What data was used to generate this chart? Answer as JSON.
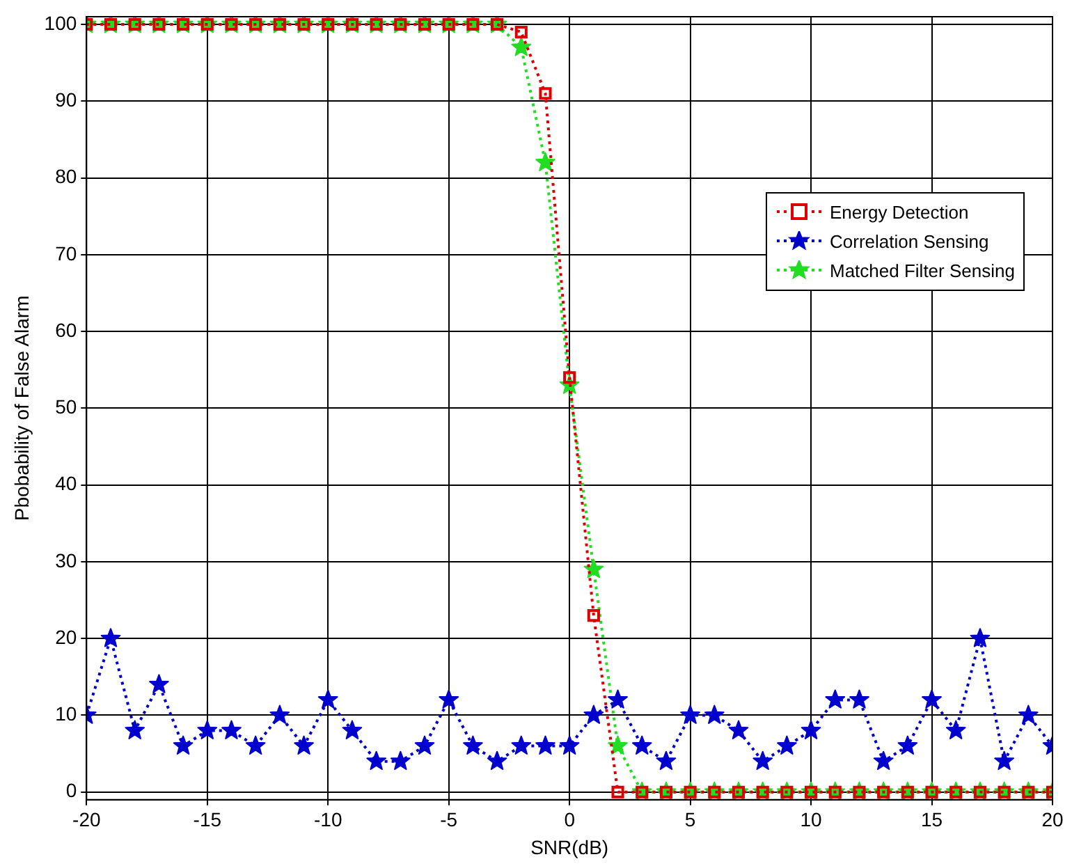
{
  "chart_data": {
    "type": "line",
    "xlabel": "SNR(dB)",
    "ylabel": "Pbobability of False Alarm",
    "x": [
      -20,
      -19,
      -18,
      -17,
      -16,
      -15,
      -14,
      -13,
      -12,
      -11,
      -10,
      -9,
      -8,
      -7,
      -6,
      -5,
      -4,
      -3,
      -2,
      -1,
      0,
      1,
      2,
      3,
      4,
      5,
      6,
      7,
      8,
      9,
      10,
      11,
      12,
      13,
      14,
      15,
      16,
      17,
      18,
      19,
      20
    ],
    "series": [
      {
        "name": "Energy Detection",
        "color": "#dd0000",
        "marker": "square",
        "values": [
          100,
          100,
          100,
          100,
          100,
          100,
          100,
          100,
          100,
          100,
          100,
          100,
          100,
          100,
          100,
          100,
          100,
          100,
          99,
          91,
          54,
          23,
          0,
          0,
          0,
          0,
          0,
          0,
          0,
          0,
          0,
          0,
          0,
          0,
          0,
          0,
          0,
          0,
          0,
          0,
          0
        ]
      },
      {
        "name": "Correlation Sensing",
        "color": "#0000cc",
        "marker": "star",
        "values": [
          10,
          20,
          8,
          14,
          6,
          8,
          8,
          6,
          10,
          6,
          12,
          8,
          4,
          4,
          6,
          12,
          6,
          4,
          6,
          6,
          6,
          10,
          12,
          6,
          4,
          10,
          10,
          8,
          4,
          6,
          8,
          12,
          12,
          4,
          6,
          12,
          8,
          20,
          4,
          10,
          6
        ]
      },
      {
        "name": "Matched Filter Sensing",
        "color": "#22dd22",
        "marker": "star",
        "values": [
          100,
          100,
          100,
          100,
          100,
          100,
          100,
          100,
          100,
          100,
          100,
          100,
          100,
          100,
          100,
          100,
          100,
          100,
          97,
          82,
          53,
          29,
          6,
          0,
          0,
          0,
          0,
          0,
          0,
          0,
          0,
          0,
          0,
          0,
          0,
          0,
          0,
          0,
          0,
          0,
          0
        ]
      }
    ],
    "xlim": [
      -20,
      20
    ],
    "xticks": [
      -20,
      -15,
      -10,
      -5,
      0,
      5,
      10,
      15,
      20
    ],
    "ylim": [
      -1,
      101
    ],
    "yticks": [
      0,
      10,
      20,
      30,
      40,
      50,
      60,
      70,
      80,
      90,
      100
    ],
    "grid": true,
    "legend": "right",
    "line_style": "dotted"
  }
}
